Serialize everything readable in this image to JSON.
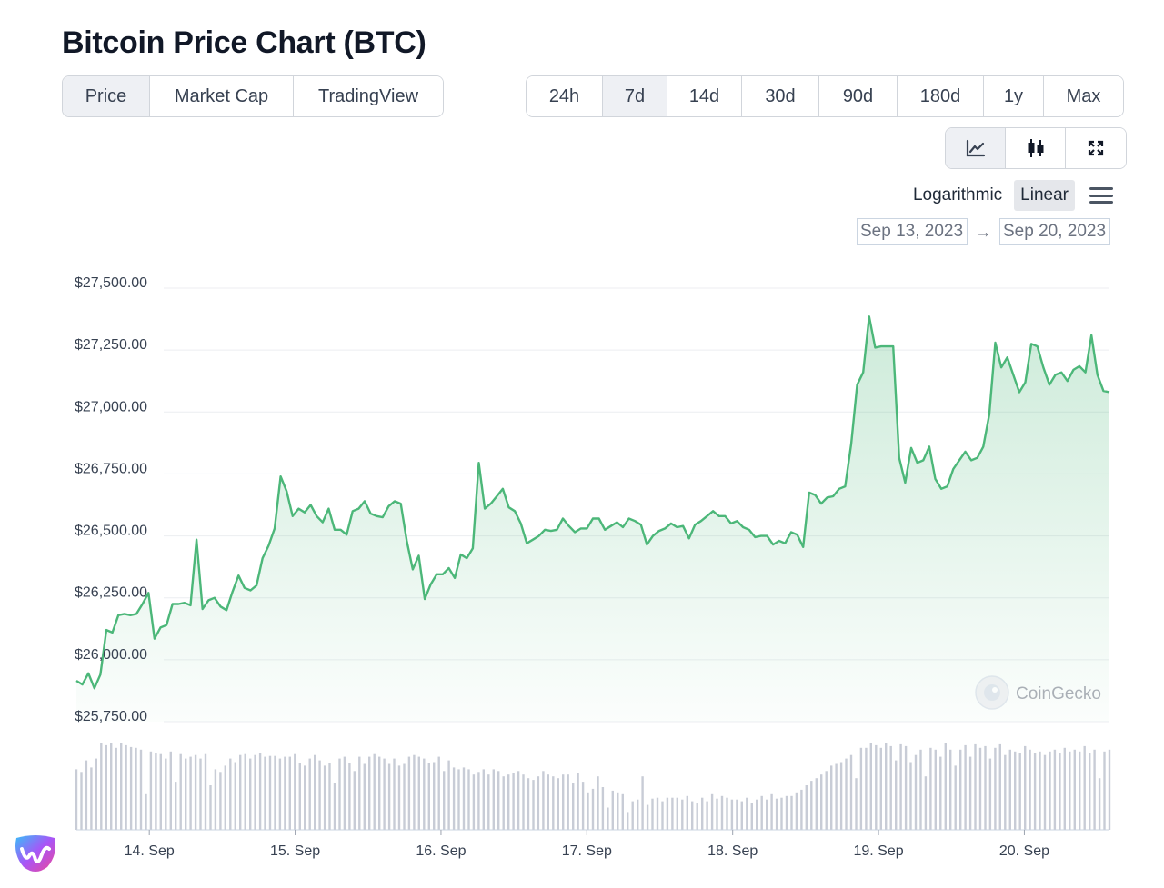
{
  "page_title": "Bitcoin Price Chart (BTC)",
  "tabs": [
    {
      "label": "Price",
      "active": true
    },
    {
      "label": "Market Cap",
      "active": false
    },
    {
      "label": "TradingView",
      "active": false
    }
  ],
  "ranges": [
    {
      "label": "24h",
      "active": false
    },
    {
      "label": "7d",
      "active": true
    },
    {
      "label": "14d",
      "active": false
    },
    {
      "label": "30d",
      "active": false
    },
    {
      "label": "90d",
      "active": false
    },
    {
      "label": "180d",
      "active": false
    },
    {
      "label": "1y",
      "active": false
    },
    {
      "label": "Max",
      "active": false
    }
  ],
  "view_icons": [
    {
      "icon": "line-chart-icon",
      "active": true
    },
    {
      "icon": "candlestick-icon",
      "active": false
    },
    {
      "icon": "expand-icon",
      "active": false
    }
  ],
  "scale": {
    "logarithmic": "Logarithmic",
    "linear": "Linear",
    "selected": "linear"
  },
  "date_range": {
    "from": "Sep 13, 2023",
    "arrow": "→",
    "to": "Sep 20, 2023"
  },
  "watermark": "CoinGecko",
  "colors": {
    "line": "#4cb779",
    "volume": "#c8ccd6",
    "grid": "#eceef1"
  },
  "chart_data": {
    "type": "line",
    "title": "",
    "ylim": [
      25750,
      27500
    ],
    "yticks": [
      "$27,500.00",
      "$27,250.00",
      "$27,000.00",
      "$26,750.00",
      "$26,500.00",
      "$26,250.00",
      "$26,000.00",
      "$25,750.00"
    ],
    "ytick_values": [
      27500,
      27250,
      27000,
      26750,
      26500,
      26250,
      26000,
      25750
    ],
    "xticks": [
      "14. Sep",
      "15. Sep",
      "16. Sep",
      "17. Sep",
      "18. Sep",
      "19. Sep",
      "20. Sep"
    ],
    "x_start": "2023-09-13 12:00",
    "x_end": "2023-09-20 14:00",
    "xtick_dates": [
      "2023-09-14",
      "2023-09-15",
      "2023-09-16",
      "2023-09-17",
      "2023-09-18",
      "2023-09-19",
      "2023-09-20"
    ],
    "grid": true,
    "series": [
      {
        "values": [
          25915,
          25900,
          25945,
          25885,
          25940,
          26120,
          26110,
          26180,
          26185,
          26180,
          26185,
          26225,
          26270,
          26085,
          26130,
          26140,
          26225,
          26225,
          26230,
          26220,
          26485,
          26205,
          26240,
          26250,
          26215,
          26200,
          26275,
          26340,
          26290,
          26280,
          26300,
          26410,
          26460,
          26530,
          26740,
          26680,
          26580,
          26610,
          26595,
          26625,
          26580,
          26555,
          26610,
          26525,
          26525,
          26505,
          26600,
          26610,
          26640,
          26590,
          26580,
          26575,
          26620,
          26640,
          26630,
          26480,
          26365,
          26420,
          26245,
          26305,
          26345,
          26345,
          26370,
          26330,
          26425,
          26410,
          26450,
          26795,
          26610,
          26630,
          26660,
          26690,
          26615,
          26600,
          26550,
          26470,
          26485,
          26500,
          26525,
          26520,
          26525,
          26570,
          26540,
          26515,
          26530,
          26530,
          26570,
          26570,
          26525,
          26540,
          26555,
          26535,
          26570,
          26560,
          26545,
          26465,
          26500,
          26520,
          26530,
          26550,
          26535,
          26540,
          26490,
          26545,
          26560,
          26580,
          26600,
          26580,
          26580,
          26550,
          26560,
          26535,
          26525,
          26495,
          26500,
          26500,
          26465,
          26480,
          26470,
          26515,
          26505,
          26455,
          26675,
          26665,
          26630,
          26655,
          26660,
          26690,
          26700,
          26870,
          27110,
          27160,
          27385,
          27260,
          27265,
          27265,
          27265,
          26815,
          26715,
          26855,
          26795,
          26805,
          26860,
          26730,
          26690,
          26700,
          26770,
          26805,
          26840,
          26805,
          26815,
          26860,
          26990,
          27280,
          27180,
          27220,
          27150,
          27080,
          27120,
          27275,
          27265,
          27180,
          27110,
          27150,
          27160,
          27125,
          27170,
          27185,
          27160,
          27310,
          27150,
          27085,
          27080
        ]
      }
    ],
    "volume": [
      68,
      65,
      78,
      70,
      80,
      98,
      95,
      98,
      92,
      98,
      95,
      93,
      92,
      90,
      40,
      88,
      86,
      85,
      80,
      88,
      54,
      85,
      80,
      82,
      84,
      80,
      85,
      50,
      68,
      65,
      72,
      80,
      76,
      84,
      85,
      80,
      84,
      86,
      82,
      83,
      83,
      80,
      82,
      82,
      85,
      75,
      72,
      80,
      84,
      78,
      72,
      75,
      52,
      80,
      82,
      75,
      66,
      82,
      74,
      82,
      85,
      82,
      80,
      74,
      80,
      72,
      74,
      82,
      84,
      82,
      80,
      75,
      76,
      82,
      66,
      78,
      70,
      68,
      70,
      68,
      62,
      65,
      68,
      62,
      68,
      66,
      60,
      62,
      64,
      66,
      62,
      58,
      56,
      60,
      66,
      62,
      60,
      58,
      62,
      62,
      52,
      64,
      54,
      42,
      46,
      60,
      48,
      25,
      44,
      42,
      40,
      20,
      32,
      34,
      60,
      28,
      35,
      36,
      32,
      36,
      36,
      36,
      34,
      38,
      32,
      30,
      36,
      32,
      40,
      35,
      38,
      36,
      34,
      34,
      32,
      36,
      30,
      34,
      38,
      34,
      40,
      35,
      36,
      38,
      38,
      42,
      45,
      50,
      55,
      58,
      62,
      66,
      72,
      74,
      76,
      80,
      84,
      58,
      92,
      92,
      98,
      95,
      92,
      98,
      94,
      78,
      96,
      94,
      76,
      84,
      90,
      60,
      92,
      90,
      82,
      98,
      90,
      72,
      90,
      95,
      82,
      96,
      92,
      94,
      80,
      92,
      96,
      84,
      90,
      88,
      86,
      94,
      90,
      86,
      88,
      84,
      88,
      90,
      86,
      92,
      88,
      90,
      88,
      94,
      86,
      90,
      58,
      88,
      90
    ]
  }
}
